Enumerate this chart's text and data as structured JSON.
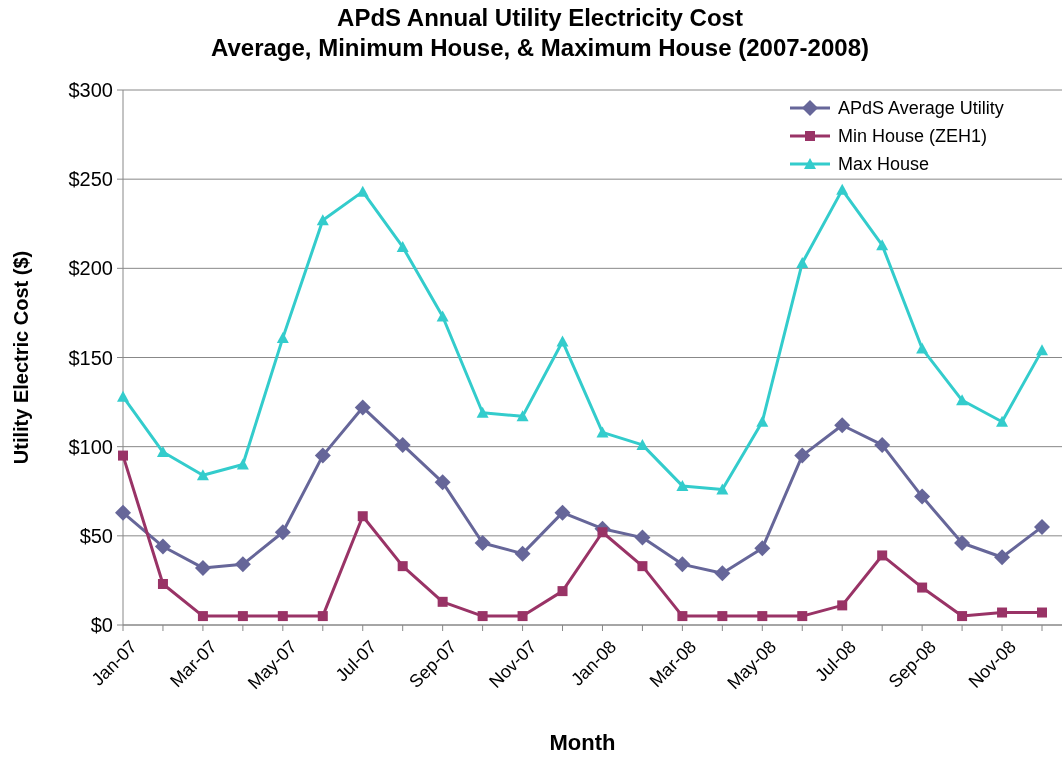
{
  "chart_data": {
    "type": "line",
    "title": "APdS Annual Utility Electricity Cost\nAverage, Minimum House, & Maximum House (2007-2008)",
    "xlabel": "Month",
    "ylabel": "Utility Electric Cost ($)",
    "categories": [
      "Jan-07",
      null,
      "Mar-07",
      null,
      "May-07",
      null,
      "Jul-07",
      null,
      "Sep-07",
      null,
      "Nov-07",
      null,
      "Jan-08",
      null,
      "Mar-08",
      null,
      "May-08",
      null,
      "Jul-08",
      null,
      "Sep-08",
      null,
      "Nov-08",
      null
    ],
    "ylim": [
      0,
      300
    ],
    "yticks": [
      {
        "value": 0,
        "label": "$0"
      },
      {
        "value": 50,
        "label": "$50"
      },
      {
        "value": 100,
        "label": "$100"
      },
      {
        "value": 150,
        "label": "$150"
      },
      {
        "value": 200,
        "label": "$200"
      },
      {
        "value": 250,
        "label": "$250"
      },
      {
        "value": 300,
        "label": "$300"
      }
    ],
    "grid": "y",
    "legend": "top right",
    "series": [
      {
        "name": "APdS Average Utility",
        "color": "#666699",
        "marker": "diamond",
        "values": [
          63,
          44,
          32,
          34,
          52,
          95,
          122,
          101,
          80,
          46,
          40,
          63,
          54,
          49,
          34,
          29,
          43,
          95,
          112,
          101,
          72,
          46,
          38,
          55
        ]
      },
      {
        "name": "Min House (ZEH1)",
        "color": "#993366",
        "marker": "square",
        "values": [
          95,
          23,
          5,
          5,
          5,
          5,
          61,
          33,
          13,
          5,
          5,
          19,
          52,
          33,
          5,
          5,
          5,
          5,
          11,
          39,
          21,
          5,
          7,
          7
        ]
      },
      {
        "name": "Max House",
        "color": "#33cccc",
        "marker": "triangle",
        "values": [
          128,
          97,
          84,
          90,
          161,
          227,
          243,
          212,
          173,
          119,
          117,
          159,
          108,
          101,
          78,
          76,
          114,
          203,
          244,
          213,
          155,
          126,
          114,
          154
        ]
      }
    ]
  }
}
